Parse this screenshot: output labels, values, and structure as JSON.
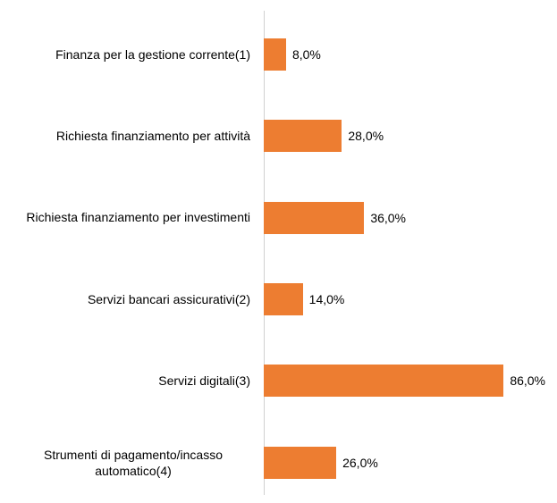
{
  "chart_data": {
    "type": "hbar",
    "categories": [
      "Finanza per la gestione corrente(1)",
      "Richiesta finanziamento per attività",
      "Richiesta finanziamento per investimenti",
      "Servizi bancari assicurativi(2)",
      "Servizi digitali(3)",
      "Strumenti di pagamento/incasso automatico(4)"
    ],
    "values": [
      8,
      28,
      36,
      14,
      86,
      26
    ],
    "value_labels": [
      "8,0%",
      "28,0%",
      "36,0%",
      "14,0%",
      "86,0%",
      "26,0%"
    ],
    "color": "#ed7d31",
    "xlim": [
      0,
      100
    ]
  }
}
